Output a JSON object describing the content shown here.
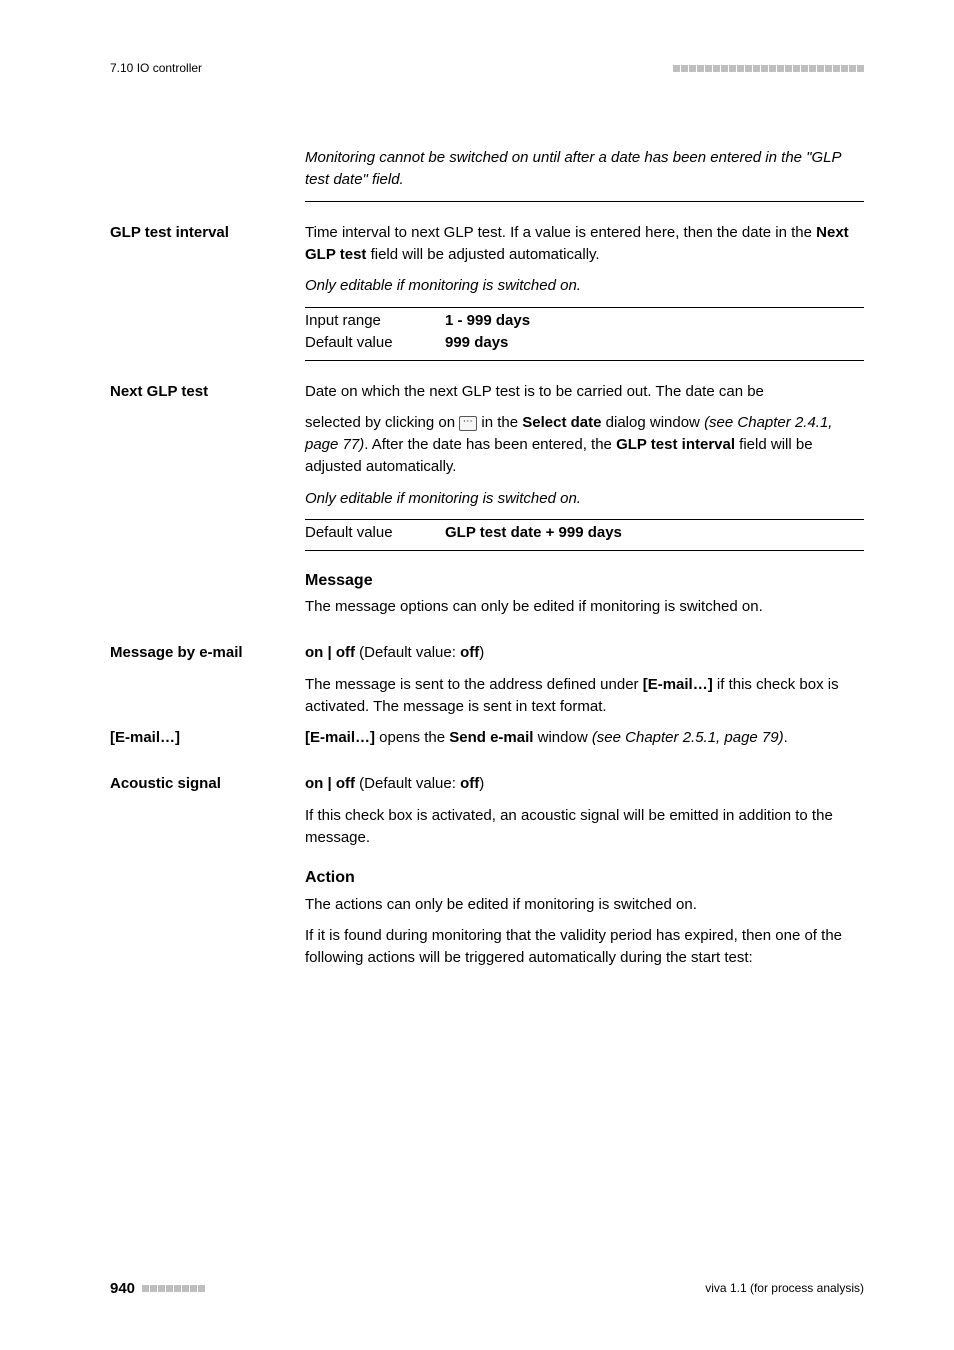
{
  "header": {
    "left": "7.10 IO controller",
    "square_count": 24,
    "square_color": "#bfbfbf"
  },
  "intro_note": "Monitoring cannot be switched on until after a date has been entered in the \"GLP test date\" field.",
  "glp_interval": {
    "label": "GLP test interval",
    "desc_pre": "Time interval to next GLP test. If a value is entered here, then the date in the ",
    "desc_bold": "Next GLP test",
    "desc_post": " field will be adjusted automatically.",
    "cond": "Only editable if monitoring is switched on.",
    "input_range_k": "Input range",
    "input_range_v": "1 - 999 days",
    "default_k": "Default value",
    "default_v": "999 days"
  },
  "next_glp": {
    "label": "Next GLP test",
    "p1": "Date on which the next GLP test is to be carried out. The date can be",
    "p2_pre": "selected by clicking on ",
    "p2_mid1": " in the ",
    "p2_bold1": "Select date",
    "p2_mid2": " dialog window ",
    "p2_ital": "(see Chapter 2.4.1, page 77)",
    "p2_mid3": ". After the date has been entered, the ",
    "p2_bold2": "GLP test interval",
    "p2_post": " field will be adjusted automatically.",
    "cond": "Only editable if monitoring is switched on.",
    "default_k": "Default value",
    "default_v": "GLP test date + 999 days"
  },
  "message": {
    "heading": "Message",
    "desc": "The message options can only be edited if monitoring is switched on."
  },
  "msg_email": {
    "label": "Message by e-mail",
    "toggle_pre": "on | off",
    "toggle_paren_pre": " (Default value: ",
    "toggle_default": "off",
    "toggle_paren_post": ")",
    "desc_pre": "The message is sent to the address defined under ",
    "desc_bold": "[E-mail…]",
    "desc_post": " if this check box is activated. The message is sent in text format."
  },
  "email_btn": {
    "label": "[E-mail…]",
    "desc_b1": "[E-mail…]",
    "desc_mid1": " opens the ",
    "desc_b2": "Send e-mail",
    "desc_mid2": " window ",
    "desc_ital": "(see Chapter 2.5.1, page 79)",
    "desc_end": "."
  },
  "acoustic": {
    "label": "Acoustic signal",
    "toggle_pre": "on | off",
    "toggle_paren_pre": " (Default value: ",
    "toggle_default": "off",
    "toggle_paren_post": ")",
    "desc": "If this check box is activated, an acoustic signal will be emitted in addition to the message."
  },
  "action": {
    "heading": "Action",
    "p1": "The actions can only be edited if monitoring is switched on.",
    "p2": "If it is found during monitoring that the validity period has expired, then one of the following actions will be triggered automatically during the start test:"
  },
  "footer": {
    "page": "940",
    "square_count": 8,
    "right": "viva 1.1 (for process analysis)"
  }
}
